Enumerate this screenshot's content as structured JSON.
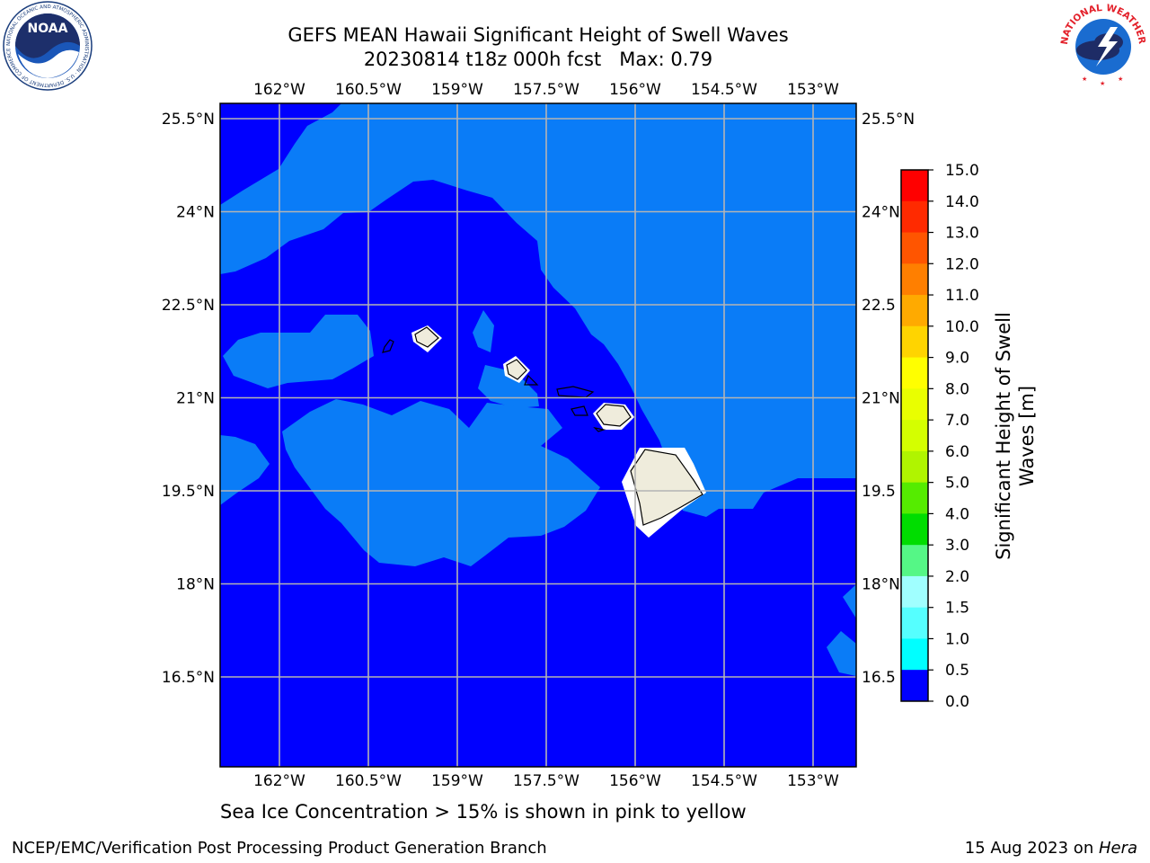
{
  "title_line1": "GEFS MEAN Hawaii Significant Height of Swell Waves",
  "title_line2": "20230814 t18z 000h fcst   Max: 0.79",
  "map": {
    "lon_ticks": [
      "162°W",
      "160.5°W",
      "159°W",
      "157.5°W",
      "156°W",
      "154.5°W",
      "153°W"
    ],
    "lat_ticks": [
      "25.5°N",
      "24°N",
      "22.5°N",
      "21°N",
      "19.5°N",
      "18°N",
      "16.5°N"
    ],
    "right_lat_ticks": [
      "25.5°N",
      "24°N",
      "22.5",
      "21°N",
      "19.5",
      "18°N",
      "16.5"
    ],
    "colors": {
      "band_0_0_5": "#0000ff",
      "band_0_5_1_0": "#0a7cf7",
      "land": "#efecdc",
      "grid": "#b4b4b4"
    }
  },
  "colorbar": {
    "label": "Significant Height of Swell Waves [m]",
    "label_line1": "Significant Height of Swell",
    "label_line2": "Waves [m]",
    "ticks": [
      "15.0",
      "14.0",
      "13.0",
      "12.0",
      "11.0",
      "10.0",
      "9.0",
      "8.0",
      "7.0",
      "6.0",
      "5.0",
      "4.0",
      "3.0",
      "2.0",
      "1.5",
      "1.0",
      "0.5",
      "0.0"
    ],
    "colors": [
      "#ff0000",
      "#ff2a00",
      "#ff5500",
      "#ff7f00",
      "#ffaa00",
      "#ffd400",
      "#ffff00",
      "#e9ff00",
      "#d4ff00",
      "#b0f400",
      "#55ec00",
      "#00dd00",
      "#55f786",
      "#a0ffff",
      "#55ffff",
      "#00ffff",
      "#0a7cf7",
      "#0000ff"
    ]
  },
  "subcaption": "Sea Ice Concentration > 15% is shown in pink to yellow",
  "footer_left": "NCEP/EMC/Verification Post Processing Product Generation Branch",
  "footer_right_prefix": "15 Aug 2023 on ",
  "footer_right_host": "Hera",
  "logos": {
    "noaa_icon": "noaa-logo-icon",
    "noaa_text": "NOAA",
    "noaa_ring_text": "NATIONAL OCEANIC AND ATMOSPHERIC ADMINISTRATION · U.S. DEPARTMENT OF COMMERCE",
    "nws_icon": "nws-logo-icon",
    "nws_ring_text": "NATIONAL WEATHER SERVICE"
  }
}
